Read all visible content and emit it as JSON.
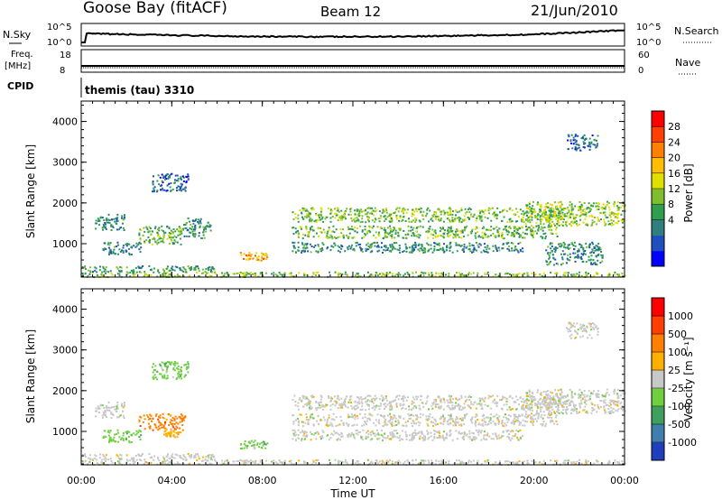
{
  "header": {
    "station": "Goose Bay (fitACF)",
    "beam": "Beam 12",
    "date": "21/Jun/2010"
  },
  "top_panels": {
    "nsky_label": "N.Sky",
    "nsky_ticks": [
      "10^5",
      "10^0"
    ],
    "nsearch_label": "N.Search",
    "nsearch_ticks": [
      "10^5",
      "10^0"
    ],
    "freq_label": "Freq.",
    "freq_unit": "[MHz]",
    "freq_ticks": [
      "18",
      "8"
    ],
    "nave_label": "Nave",
    "nave_ticks": [
      "60",
      "0"
    ],
    "cpid_label": "CPID",
    "cpid_value": "themis (tau) 3310"
  },
  "chart_data": [
    {
      "type": "heatmap",
      "name": "power-panel",
      "ylabel": "Slant Range [km]",
      "ylim": [
        180,
        4500
      ],
      "yticks": [
        1000,
        2000,
        3000,
        4000
      ],
      "xlim": [
        0,
        24
      ],
      "colorbar": {
        "label": "Power [dB]",
        "range": [
          0,
          32
        ],
        "ticks": [
          "28",
          "24",
          "20",
          "16",
          "12",
          "8",
          "4"
        ],
        "colors": [
          "#0000ff",
          "#1f4fbf",
          "#2f7f7f",
          "#2f9f4f",
          "#7fbf2f",
          "#dfdf00",
          "#ffbf00",
          "#ff8000",
          "#ff4000",
          "#ff0000"
        ]
      },
      "features": [
        {
          "t0": 0.0,
          "t1": 24.0,
          "r0": 200,
          "r1": 320,
          "level": 14
        },
        {
          "t0": 0.0,
          "t1": 5.9,
          "r0": 320,
          "r1": 470,
          "level": 10
        },
        {
          "t0": 0.6,
          "t1": 1.9,
          "r0": 1350,
          "r1": 1750,
          "level": 8
        },
        {
          "t0": 0.9,
          "t1": 2.6,
          "r0": 750,
          "r1": 1050,
          "level": 9
        },
        {
          "t0": 2.5,
          "t1": 4.5,
          "r0": 1000,
          "r1": 1450,
          "level": 13
        },
        {
          "t0": 4.5,
          "t1": 5.7,
          "r0": 1150,
          "r1": 1650,
          "level": 9
        },
        {
          "t0": 3.1,
          "t1": 4.7,
          "r0": 2300,
          "r1": 2750,
          "level": 7
        },
        {
          "t0": 7.0,
          "t1": 8.2,
          "r0": 600,
          "r1": 800,
          "level": 22
        },
        {
          "t0": 9.3,
          "t1": 21.3,
          "r0": 1550,
          "r1": 1900,
          "level": 14
        },
        {
          "t0": 9.3,
          "t1": 21.0,
          "r0": 1150,
          "r1": 1450,
          "level": 13
        },
        {
          "t0": 9.3,
          "t1": 19.5,
          "r0": 800,
          "r1": 1050,
          "level": 9
        },
        {
          "t0": 19.6,
          "t1": 24.0,
          "r0": 1450,
          "r1": 2050,
          "level": 15
        },
        {
          "t0": 20.5,
          "t1": 23.0,
          "r0": 500,
          "r1": 1050,
          "level": 9
        },
        {
          "t0": 21.4,
          "t1": 22.8,
          "r0": 3300,
          "r1": 3700,
          "level": 7
        }
      ]
    },
    {
      "type": "heatmap",
      "name": "velocity-panel",
      "ylabel": "Slant Range [km]",
      "xlabel": "Time UT",
      "ylim": [
        180,
        4500
      ],
      "yticks": [
        1000,
        2000,
        3000,
        4000
      ],
      "xlim": [
        0,
        24
      ],
      "xticks": [
        "00:00",
        "04:00",
        "08:00",
        "12:00",
        "16:00",
        "20:00",
        "00:00"
      ],
      "colorbar": {
        "label": "Velocity [m s⁻¹]",
        "ticks": [
          "1000",
          "500",
          "100",
          "25",
          "-25",
          "-100",
          "-500",
          "-1000"
        ],
        "colors": [
          "#1f3fbf",
          "#3f7faf",
          "#3f9f5f",
          "#6fcf3f",
          "#c8c8c8",
          "#ffaf00",
          "#ff7f00",
          "#ff3f00",
          "#ff0000"
        ]
      },
      "features": [
        {
          "t0": 0.0,
          "t1": 24.0,
          "r0": 200,
          "r1": 320,
          "level": 4
        },
        {
          "t0": 0.0,
          "t1": 5.9,
          "r0": 320,
          "r1": 470,
          "level": 4
        },
        {
          "t0": 0.6,
          "t1": 1.9,
          "r0": 1350,
          "r1": 1750,
          "level": 4
        },
        {
          "t0": 0.9,
          "t1": 2.6,
          "r0": 750,
          "r1": 1050,
          "level": 3
        },
        {
          "t0": 2.5,
          "t1": 4.6,
          "r0": 1050,
          "r1": 1450,
          "level": 6
        },
        {
          "t0": 3.6,
          "t1": 4.4,
          "r0": 880,
          "r1": 1080,
          "level": 5
        },
        {
          "t0": 3.1,
          "t1": 4.7,
          "r0": 2300,
          "r1": 2750,
          "level": 3
        },
        {
          "t0": 7.0,
          "t1": 8.2,
          "r0": 600,
          "r1": 800,
          "level": 3
        },
        {
          "t0": 9.3,
          "t1": 21.3,
          "r0": 1550,
          "r1": 1900,
          "level": 4
        },
        {
          "t0": 9.3,
          "t1": 21.0,
          "r0": 1150,
          "r1": 1450,
          "level": 4
        },
        {
          "t0": 9.3,
          "t1": 19.5,
          "r0": 800,
          "r1": 1050,
          "level": 4
        },
        {
          "t0": 19.6,
          "t1": 24.0,
          "r0": 1450,
          "r1": 2050,
          "level": 4
        },
        {
          "t0": 21.4,
          "t1": 22.8,
          "r0": 3300,
          "r1": 3700,
          "level": 4
        }
      ]
    }
  ]
}
